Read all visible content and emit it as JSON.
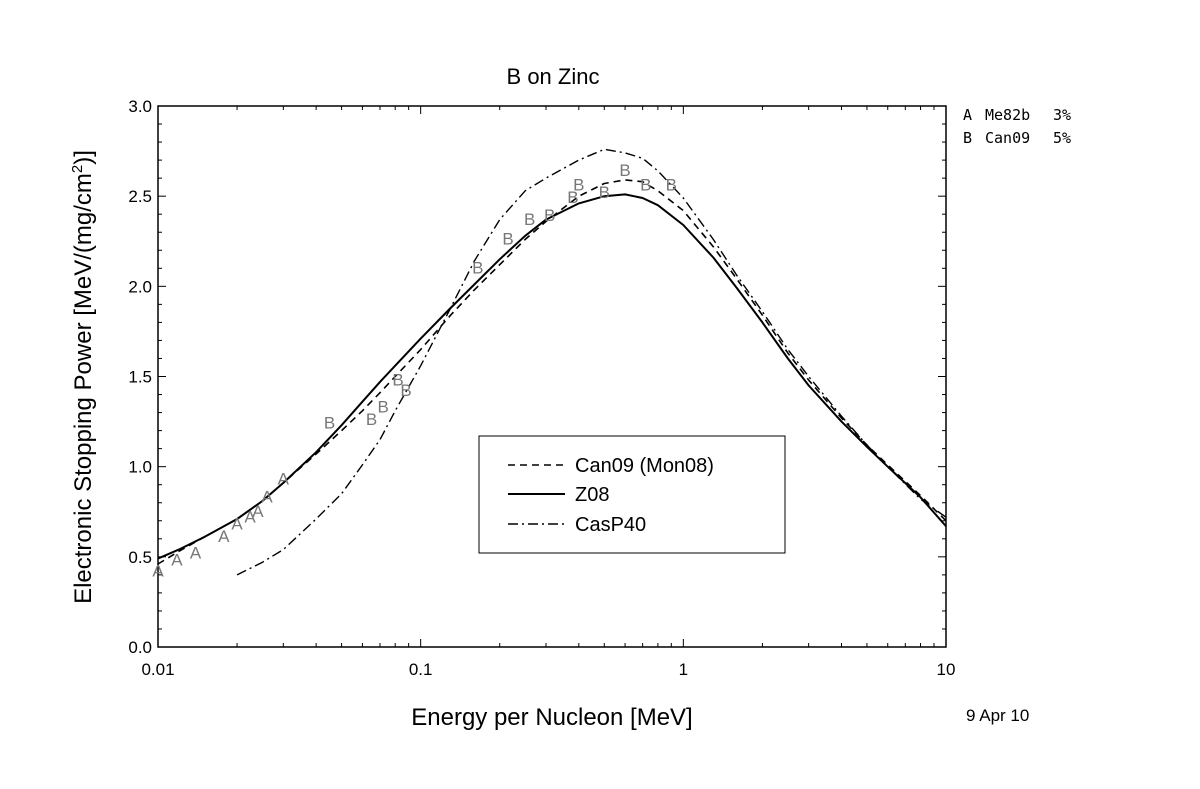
{
  "chart_data": {
    "type": "line",
    "title": "B on Zinc",
    "xlabel": "Energy per Nucleon [MeV]",
    "ylabel_main": "Electronic Stopping Power [MeV/(mg/cm",
    "ylabel_sup": "2",
    "ylabel_tail": ")]",
    "xscale": "log",
    "xlim": [
      0.01,
      10
    ],
    "ylim": [
      0.0,
      3.0
    ],
    "x_ticks": [
      {
        "value": 0.01,
        "label": "0.01"
      },
      {
        "value": 0.1,
        "label": "0.1"
      },
      {
        "value": 1,
        "label": "1"
      },
      {
        "value": 10,
        "label": "10"
      }
    ],
    "y_ticks": [
      {
        "value": 0.0,
        "label": "0.0"
      },
      {
        "value": 0.5,
        "label": "0.5"
      },
      {
        "value": 1.0,
        "label": "1.0"
      },
      {
        "value": 1.5,
        "label": "1.5"
      },
      {
        "value": 2.0,
        "label": "2.0"
      },
      {
        "value": 2.5,
        "label": "2.5"
      },
      {
        "value": 3.0,
        "label": "3.0"
      }
    ],
    "date_stamp": "9 Apr 10",
    "legend_placement": "lower-center",
    "series": [
      {
        "name": "Can09 (Mon08)",
        "style": "dashed",
        "x": [
          0.01,
          0.012,
          0.015,
          0.02,
          0.025,
          0.03,
          0.04,
          0.05,
          0.06,
          0.07,
          0.08,
          0.1,
          0.13,
          0.16,
          0.2,
          0.25,
          0.3,
          0.4,
          0.5,
          0.6,
          0.7,
          0.8,
          1.0,
          1.3,
          1.6,
          2.0,
          2.5,
          3.0,
          4.0,
          5.0,
          6.0,
          8.0,
          10.0
        ],
        "y": [
          0.46,
          0.53,
          0.61,
          0.71,
          0.81,
          0.91,
          1.07,
          1.2,
          1.31,
          1.41,
          1.5,
          1.65,
          1.84,
          1.98,
          2.12,
          2.26,
          2.36,
          2.5,
          2.57,
          2.59,
          2.58,
          2.53,
          2.42,
          2.22,
          2.04,
          1.84,
          1.63,
          1.48,
          1.27,
          1.12,
          1.01,
          0.84,
          0.7
        ]
      },
      {
        "name": "Z08",
        "style": "solid",
        "x": [
          0.01,
          0.012,
          0.015,
          0.02,
          0.025,
          0.03,
          0.04,
          0.05,
          0.06,
          0.07,
          0.08,
          0.1,
          0.13,
          0.16,
          0.2,
          0.25,
          0.3,
          0.4,
          0.5,
          0.6,
          0.7,
          0.8,
          1.0,
          1.3,
          1.6,
          2.0,
          2.5,
          3.0,
          4.0,
          5.0,
          6.0,
          8.0,
          10.0
        ],
        "y": [
          0.49,
          0.54,
          0.61,
          0.71,
          0.81,
          0.91,
          1.08,
          1.23,
          1.36,
          1.47,
          1.56,
          1.71,
          1.88,
          2.01,
          2.15,
          2.28,
          2.37,
          2.46,
          2.5,
          2.51,
          2.49,
          2.45,
          2.34,
          2.16,
          1.99,
          1.8,
          1.6,
          1.45,
          1.25,
          1.11,
          1.0,
          0.83,
          0.67
        ]
      },
      {
        "name": "CasP40",
        "style": "dashdot",
        "x": [
          0.02,
          0.025,
          0.03,
          0.04,
          0.05,
          0.06,
          0.07,
          0.08,
          0.1,
          0.13,
          0.16,
          0.2,
          0.25,
          0.3,
          0.4,
          0.5,
          0.6,
          0.7,
          0.8,
          1.0,
          1.3,
          1.6,
          2.0,
          2.5,
          3.0,
          4.0,
          5.0,
          6.0,
          8.0,
          10.0
        ],
        "y": [
          0.4,
          0.47,
          0.54,
          0.71,
          0.85,
          1.01,
          1.15,
          1.31,
          1.56,
          1.88,
          2.14,
          2.37,
          2.53,
          2.6,
          2.7,
          2.76,
          2.74,
          2.71,
          2.64,
          2.49,
          2.26,
          2.06,
          1.86,
          1.65,
          1.5,
          1.28,
          1.12,
          1.0,
          0.82,
          0.72
        ]
      }
    ],
    "data_sets": [
      {
        "marker": "A",
        "label": "Me82b",
        "error": "3%",
        "points": [
          {
            "x": 0.01,
            "y": 0.43
          },
          {
            "x": 0.0118,
            "y": 0.49
          },
          {
            "x": 0.0139,
            "y": 0.53
          },
          {
            "x": 0.0178,
            "y": 0.62
          },
          {
            "x": 0.02,
            "y": 0.69
          },
          {
            "x": 0.0224,
            "y": 0.73
          },
          {
            "x": 0.024,
            "y": 0.76
          },
          {
            "x": 0.026,
            "y": 0.84
          },
          {
            "x": 0.03,
            "y": 0.94
          }
        ]
      },
      {
        "marker": "B",
        "label": "Can09",
        "error": "5%",
        "points": [
          {
            "x": 0.045,
            "y": 1.25
          },
          {
            "x": 0.065,
            "y": 1.27
          },
          {
            "x": 0.072,
            "y": 1.34
          },
          {
            "x": 0.082,
            "y": 1.49
          },
          {
            "x": 0.088,
            "y": 1.43
          },
          {
            "x": 0.165,
            "y": 2.11
          },
          {
            "x": 0.215,
            "y": 2.27
          },
          {
            "x": 0.26,
            "y": 2.38
          },
          {
            "x": 0.31,
            "y": 2.4
          },
          {
            "x": 0.38,
            "y": 2.5
          },
          {
            "x": 0.4,
            "y": 2.57
          },
          {
            "x": 0.5,
            "y": 2.53
          },
          {
            "x": 0.6,
            "y": 2.65
          },
          {
            "x": 0.72,
            "y": 2.57
          },
          {
            "x": 0.9,
            "y": 2.57
          }
        ]
      }
    ]
  }
}
